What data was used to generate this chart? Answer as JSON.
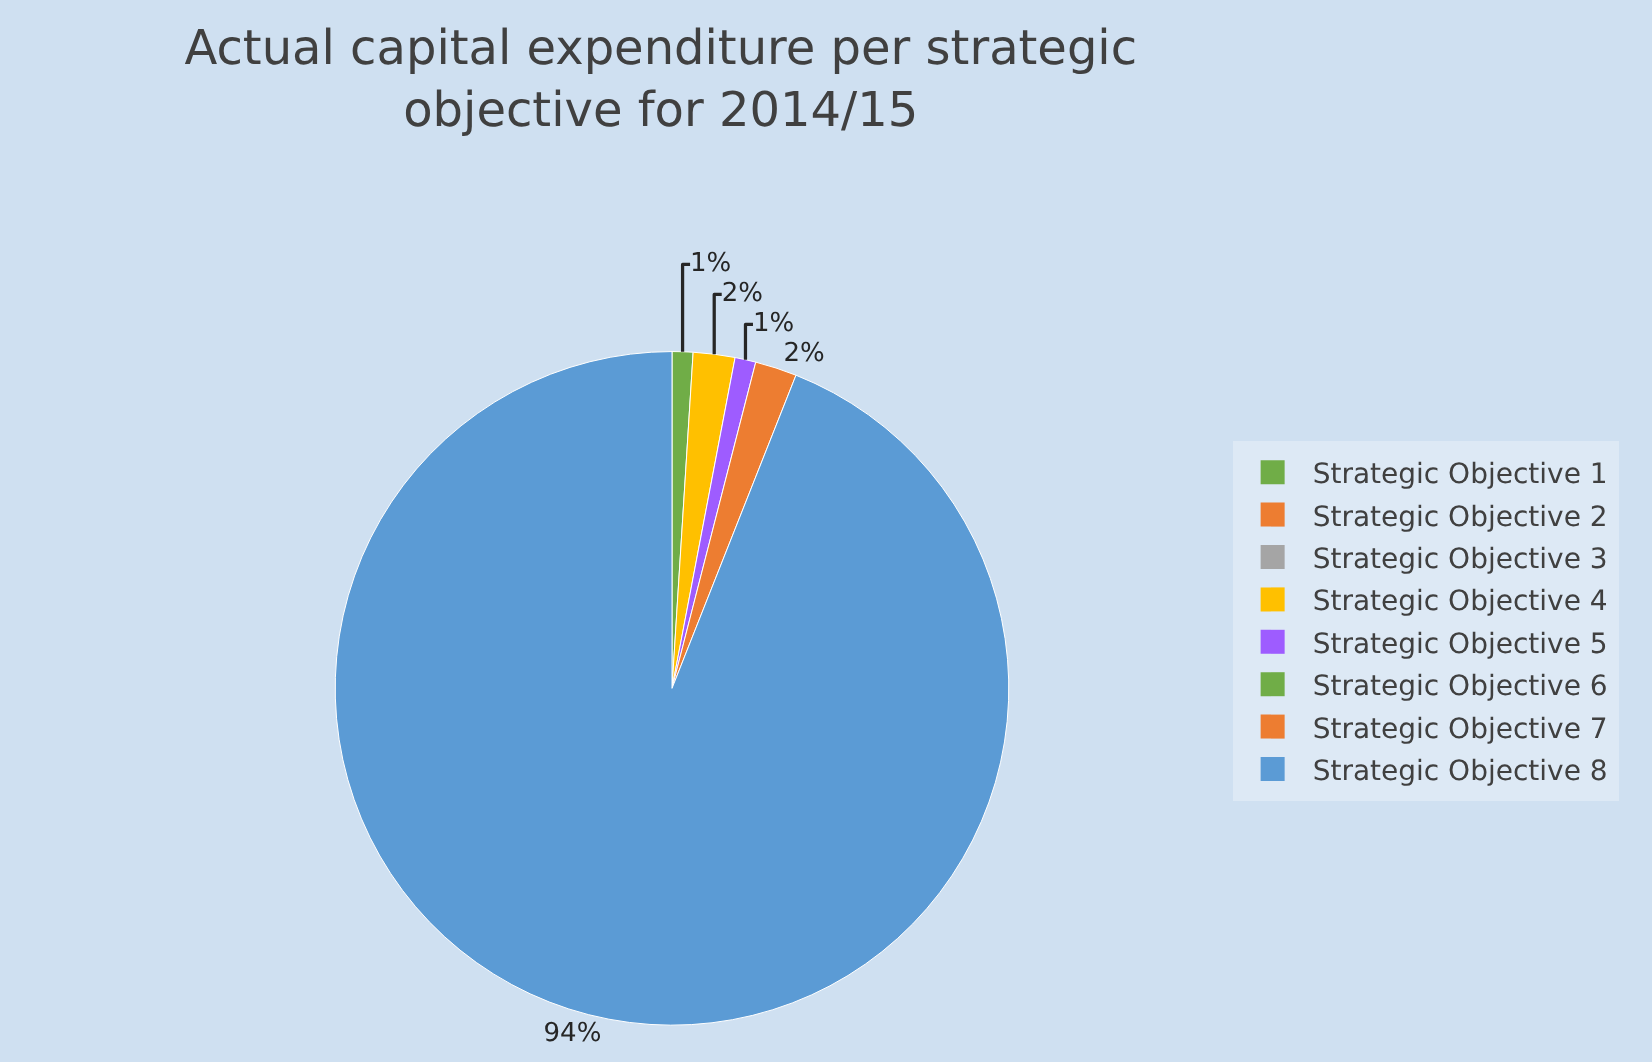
{
  "chart_data": {
    "type": "pie",
    "title": "Actual capital expenditure per strategic objective for 2014/15",
    "categories": [
      "Strategic Objective 1",
      "Strategic Objective 2",
      "Strategic Objective 3",
      "Strategic Objective 4",
      "Strategic Objective 5",
      "Strategic Objective 6",
      "Strategic Objective 7",
      "Strategic Objective 8"
    ],
    "values": [
      1,
      0,
      0,
      2,
      1,
      0,
      2,
      94
    ],
    "value_labels": [
      "1%",
      null,
      null,
      "2%",
      "1%",
      null,
      "2%",
      "94%"
    ],
    "colors": [
      "#70ad47",
      "#ed7d31",
      "#a5a5a5",
      "#ffc000",
      "#9e5cff",
      "#70ad47",
      "#ed7d31",
      "#5b9bd5"
    ],
    "legend": "right"
  }
}
